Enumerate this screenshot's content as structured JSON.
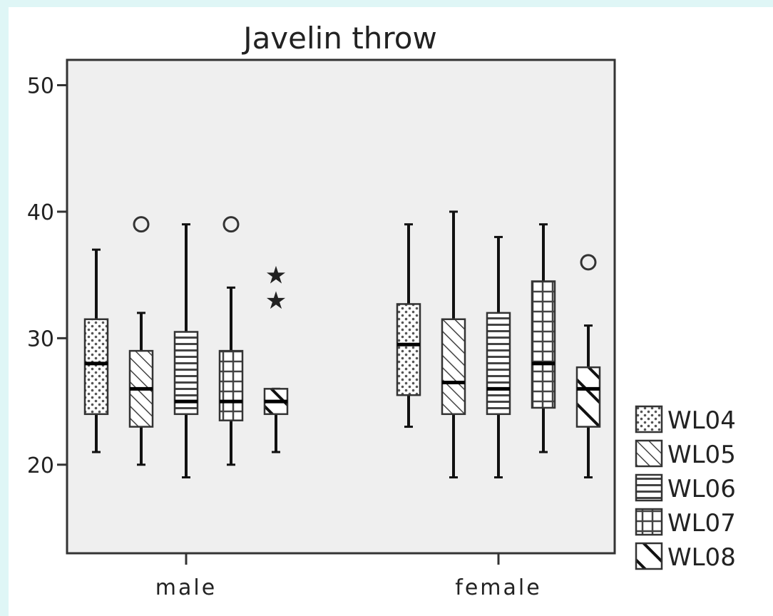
{
  "chart_data": {
    "type": "boxplot",
    "title": "Javelin throw",
    "xlabel": "",
    "ylabel": "",
    "ylim": [
      13,
      52
    ],
    "yticks": [
      20,
      30,
      40,
      50
    ],
    "categories": [
      "male",
      "female"
    ],
    "legend_position": "bottom-right",
    "grid": false,
    "series": [
      {
        "name": "WL04",
        "pattern": "dots",
        "boxes": [
          {
            "category": "male",
            "whisker_low": 21,
            "q1": 24,
            "median": 28,
            "q3": 31.5,
            "whisker_high": 37,
            "outliers": [],
            "extremes": []
          },
          {
            "category": "female",
            "whisker_low": 23,
            "q1": 25.5,
            "median": 29.5,
            "q3": 32.7,
            "whisker_high": 39,
            "outliers": [],
            "extremes": []
          }
        ]
      },
      {
        "name": "WL05",
        "pattern": "diagonal",
        "boxes": [
          {
            "category": "male",
            "whisker_low": 20,
            "q1": 23,
            "median": 26,
            "q3": 29,
            "whisker_high": 32,
            "outliers": [
              39
            ],
            "extremes": []
          },
          {
            "category": "female",
            "whisker_low": 19,
            "q1": 24,
            "median": 26.5,
            "q3": 31.5,
            "whisker_high": 40,
            "outliers": [],
            "extremes": []
          }
        ]
      },
      {
        "name": "WL06",
        "pattern": "horizontal",
        "boxes": [
          {
            "category": "male",
            "whisker_low": 19,
            "q1": 24,
            "median": 25,
            "q3": 30.5,
            "whisker_high": 39,
            "outliers": [],
            "extremes": []
          },
          {
            "category": "female",
            "whisker_low": 19,
            "q1": 24,
            "median": 26,
            "q3": 32,
            "whisker_high": 38,
            "outliers": [],
            "extremes": []
          }
        ]
      },
      {
        "name": "WL07",
        "pattern": "grid",
        "boxes": [
          {
            "category": "male",
            "whisker_low": 20,
            "q1": 23.5,
            "median": 25,
            "q3": 29,
            "whisker_high": 34,
            "outliers": [
              39
            ],
            "extremes": []
          },
          {
            "category": "female",
            "whisker_low": 21,
            "q1": 24.5,
            "median": 28,
            "q3": 34.5,
            "whisker_high": 39,
            "outliers": [],
            "extremes": []
          }
        ]
      },
      {
        "name": "WL08",
        "pattern": "bold-diagonal",
        "boxes": [
          {
            "category": "male",
            "whisker_low": 21,
            "q1": 24,
            "median": 25,
            "q3": 26,
            "whisker_high": 26,
            "outliers": [],
            "extremes": [
              33,
              35
            ]
          },
          {
            "category": "female",
            "whisker_low": 19,
            "q1": 23,
            "median": 26,
            "q3": 27.7,
            "whisker_high": 31,
            "outliers": [
              36
            ],
            "extremes": []
          }
        ]
      }
    ]
  }
}
